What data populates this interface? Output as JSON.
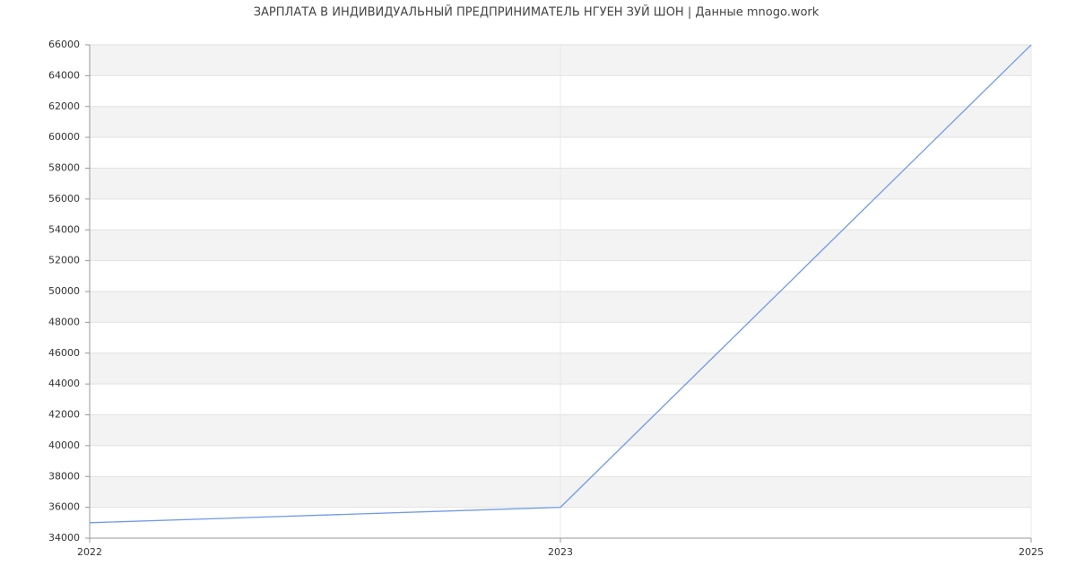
{
  "chart_data": {
    "type": "line",
    "title": "ЗАРПЛАТА В ИНДИВИДУАЛЬНЫЙ ПРЕДПРИНИМАТЕЛЬ НГУЕН ЗУЙ ШОН | Данные mnogo.work",
    "categories": [
      "2022",
      "2023",
      "2025"
    ],
    "values": [
      35000,
      36000,
      66000
    ],
    "color": "#6f9ae8",
    "ylim": [
      34000,
      66000
    ],
    "yticks": [
      34000,
      36000,
      38000,
      40000,
      42000,
      44000,
      46000,
      48000,
      50000,
      52000,
      54000,
      56000,
      58000,
      60000,
      62000,
      64000,
      66000
    ],
    "grid": true,
    "band_color": "#f3f3f3"
  }
}
